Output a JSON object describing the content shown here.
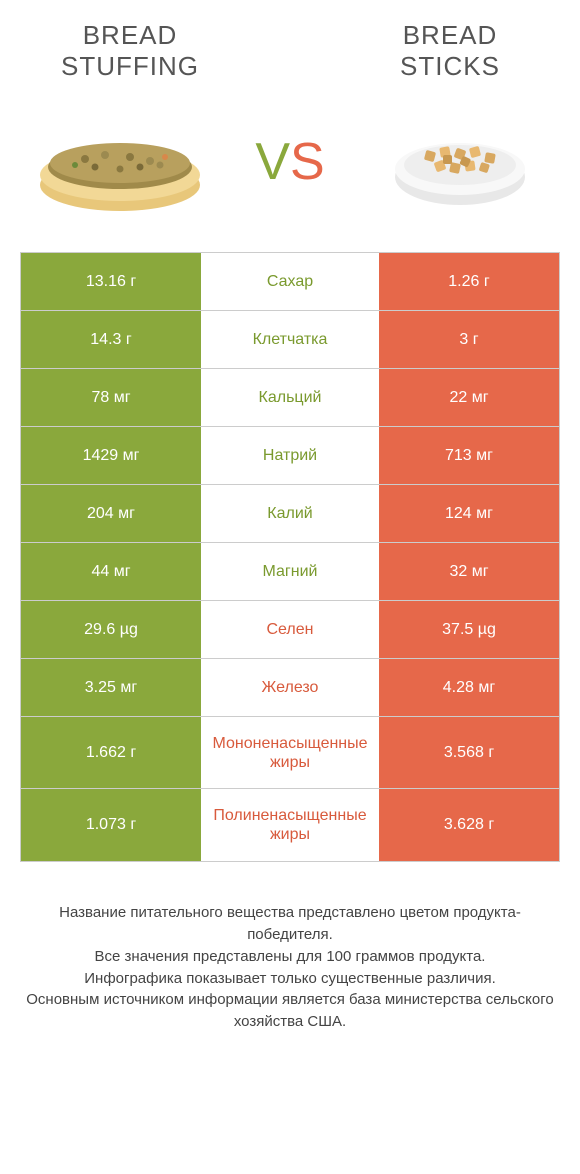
{
  "colors": {
    "green": "#8aa83c",
    "orange": "#e6684a",
    "greenText": "#7a9a2e",
    "orangeText": "#d85a3c",
    "border": "#cccccc",
    "white": "#ffffff",
    "titleGray": "#555555"
  },
  "productA": {
    "title": "BREAD STUFFING"
  },
  "productB": {
    "title": "BREAD STICKS"
  },
  "vs": "VS",
  "rows": [
    {
      "left": "13.16 г",
      "label": "Сахар",
      "right": "1.26 г",
      "winner": "left",
      "tall": false
    },
    {
      "left": "14.3 г",
      "label": "Клетчатка",
      "right": "3 г",
      "winner": "left",
      "tall": false
    },
    {
      "left": "78 мг",
      "label": "Кальций",
      "right": "22 мг",
      "winner": "left",
      "tall": false
    },
    {
      "left": "1429 мг",
      "label": "Натрий",
      "right": "713 мг",
      "winner": "left",
      "tall": false
    },
    {
      "left": "204 мг",
      "label": "Калий",
      "right": "124 мг",
      "winner": "left",
      "tall": false
    },
    {
      "left": "44 мг",
      "label": "Магний",
      "right": "32 мг",
      "winner": "left",
      "tall": false
    },
    {
      "left": "29.6 µg",
      "label": "Селен",
      "right": "37.5 µg",
      "winner": "right",
      "tall": false
    },
    {
      "left": "3.25 мг",
      "label": "Железо",
      "right": "4.28 мг",
      "winner": "right",
      "tall": false
    },
    {
      "left": "1.662 г",
      "label": "Мононенасыщенные жиры",
      "right": "3.568 г",
      "winner": "right",
      "tall": true
    },
    {
      "left": "1.073 г",
      "label": "Полиненасыщенные жиры",
      "right": "3.628 г",
      "winner": "right",
      "tall": true
    }
  ],
  "footer": [
    "Название питательного вещества представлено цветом продукта-победителя.",
    "Все значения представлены для 100 граммов продукта.",
    "Инфографика показывает только существенные различия.",
    "Основным источником информации является база министерства сельского хозяйства США."
  ]
}
